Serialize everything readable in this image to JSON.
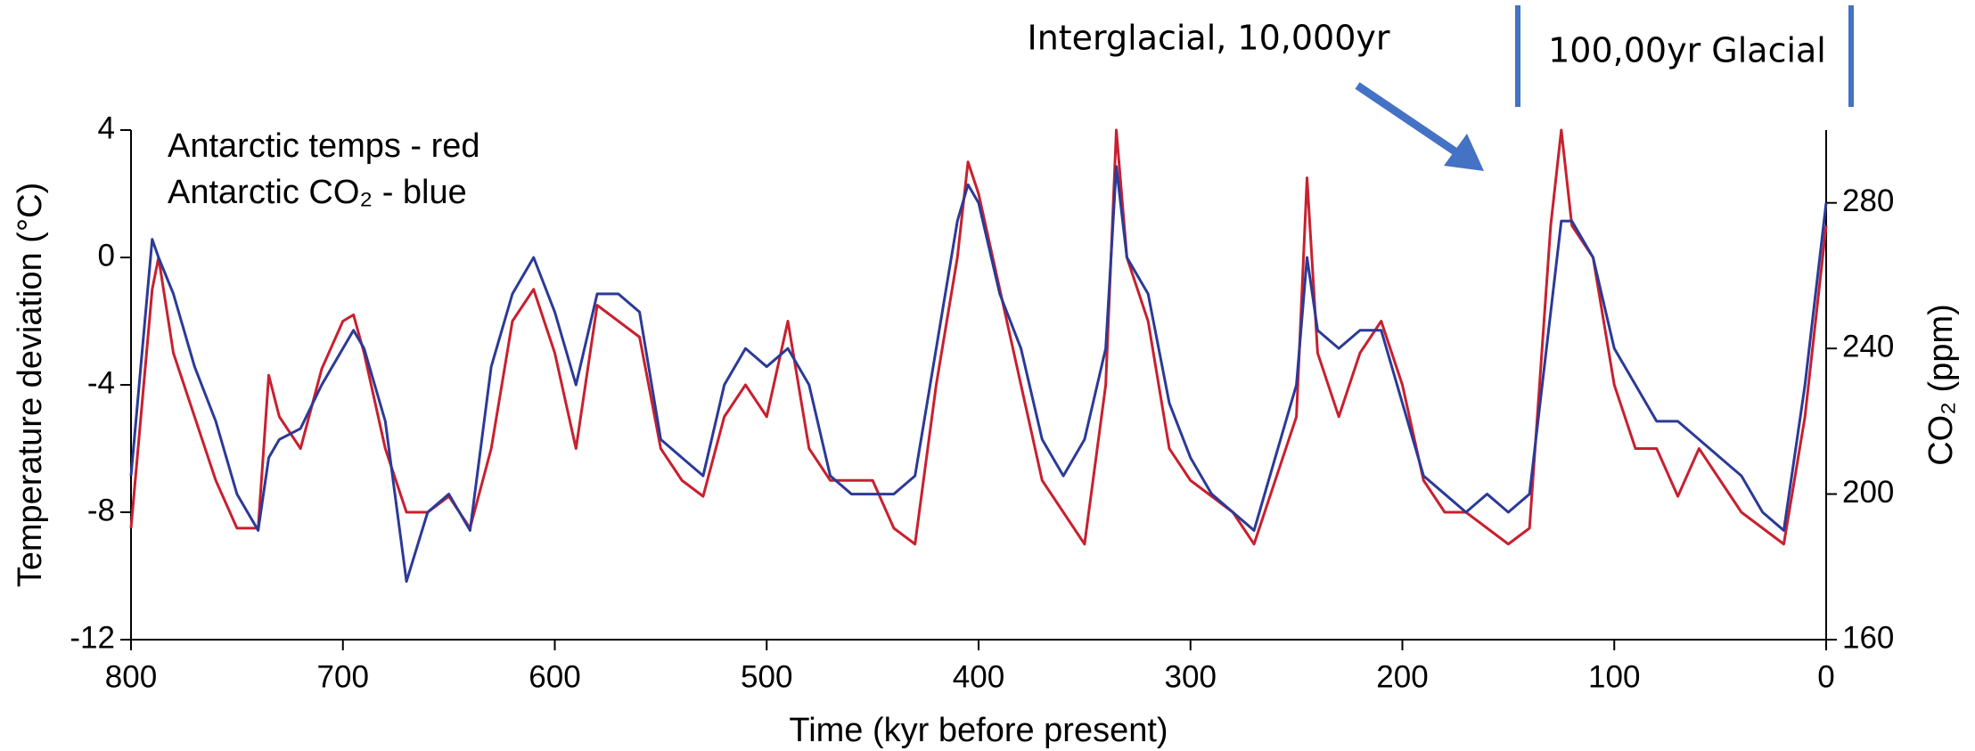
{
  "chart_data": {
    "type": "line",
    "xlabel": "Time (kyr before present)",
    "ylabel": "Temperature deviation (°C)",
    "y2label": "CO₂ (ppm)",
    "legend_lines": [
      "Antarctic temps  -  red",
      "Antarctic CO₂ -  blue"
    ],
    "annotations": [
      "Interglacial, 10,000yr",
      "100,00yr Glacial"
    ],
    "xlim": [
      800,
      0
    ],
    "xticks": [
      800,
      700,
      600,
      500,
      400,
      300,
      200,
      100,
      0
    ],
    "ylim": [
      -12,
      4
    ],
    "yticks": [
      -12,
      -8,
      -4,
      0,
      4
    ],
    "y2lim": [
      160,
      300
    ],
    "y2ticks": [
      160,
      200,
      240,
      280
    ],
    "x": [
      800,
      790,
      787,
      780,
      770,
      760,
      750,
      740,
      735,
      730,
      720,
      710,
      700,
      695,
      690,
      680,
      670,
      660,
      650,
      640,
      630,
      620,
      610,
      600,
      590,
      580,
      570,
      560,
      550,
      540,
      530,
      520,
      510,
      500,
      490,
      480,
      470,
      460,
      450,
      440,
      430,
      420,
      410,
      405,
      400,
      390,
      380,
      370,
      360,
      350,
      340,
      335,
      330,
      320,
      310,
      300,
      290,
      280,
      270,
      260,
      250,
      245,
      240,
      230,
      220,
      210,
      200,
      190,
      180,
      170,
      160,
      150,
      140,
      130,
      125,
      120,
      110,
      100,
      90,
      80,
      70,
      60,
      50,
      40,
      30,
      20,
      10,
      0
    ],
    "series": [
      {
        "name": "Antarctic temps",
        "color": "#c8202f",
        "values": [
          -8.5,
          -1,
          0,
          -3,
          -5,
          -7,
          -8.5,
          -8.5,
          -3.7,
          -5,
          -6,
          -3.5,
          -2,
          -1.8,
          -3,
          -6,
          -8,
          -8,
          -7.5,
          -8.5,
          -6,
          -2,
          -1,
          -3,
          -6,
          -1.5,
          -2,
          -2.5,
          -6,
          -7,
          -7.5,
          -5,
          -4,
          -5,
          -2,
          -6,
          -7,
          -7,
          -7,
          -8.5,
          -9,
          -4,
          0,
          3,
          2,
          -1,
          -4,
          -7,
          -8,
          -9,
          -4,
          4,
          0,
          -2,
          -6,
          -7,
          -7.5,
          -8,
          -9,
          -7,
          -5,
          2.5,
          -3,
          -5,
          -3,
          -2,
          -4,
          -7,
          -8,
          -8,
          -8.5,
          -9,
          -8.5,
          1,
          4,
          1,
          0,
          -4,
          -6,
          -6,
          -7.5,
          -6,
          -7,
          -8,
          -8.5,
          -9,
          -5,
          1
        ]
      },
      {
        "name": "Antarctic CO₂",
        "color": "#2b3a97",
        "axis": "y2",
        "values": [
          205,
          270,
          265,
          255,
          235,
          220,
          200,
          190,
          210,
          215,
          218,
          230,
          240,
          245,
          240,
          220,
          176,
          195,
          200,
          190,
          235,
          255,
          265,
          250,
          230,
          255,
          255,
          250,
          215,
          210,
          205,
          230,
          240,
          235,
          240,
          230,
          205,
          200,
          200,
          200,
          205,
          240,
          275,
          285,
          280,
          255,
          240,
          215,
          205,
          215,
          240,
          290,
          265,
          255,
          225,
          210,
          200,
          195,
          190,
          210,
          230,
          265,
          245,
          240,
          245,
          245,
          225,
          205,
          200,
          195,
          200,
          195,
          200,
          250,
          275,
          275,
          265,
          240,
          230,
          220,
          220,
          215,
          210,
          205,
          195,
          190,
          230,
          280
        ]
      }
    ]
  }
}
